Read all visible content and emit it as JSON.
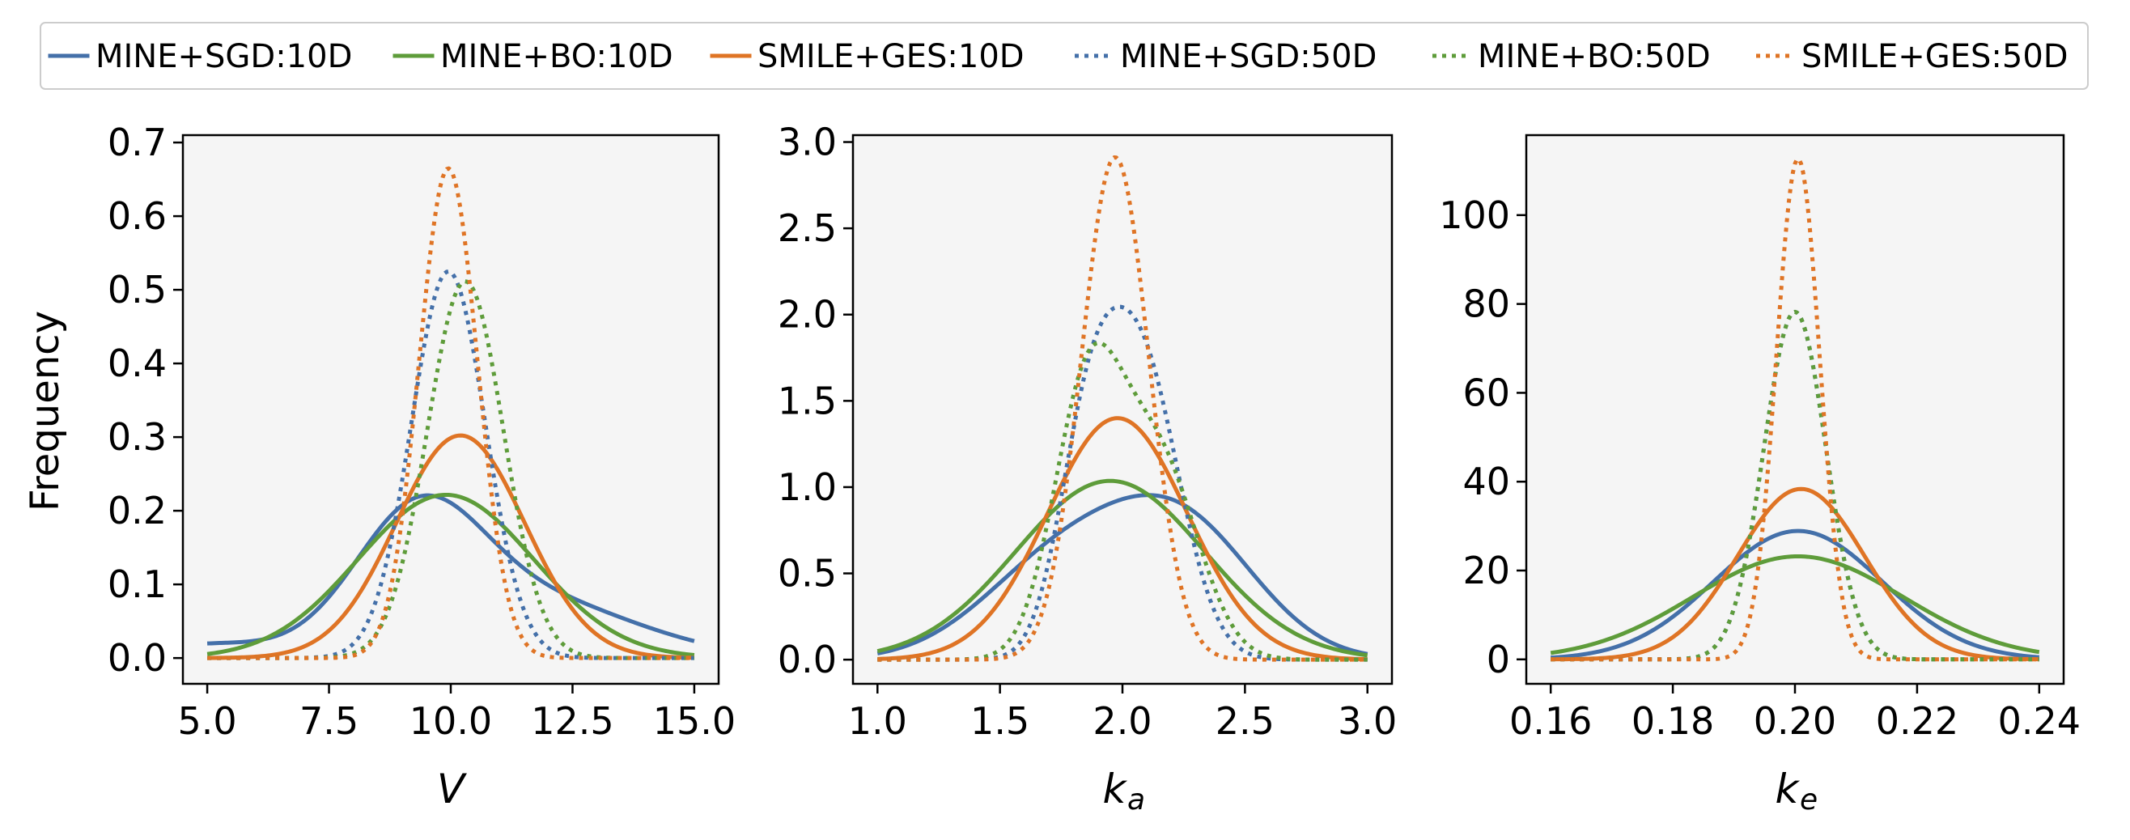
{
  "chart_data": {
    "type": "line",
    "ylabel": "Frequency",
    "colors": {
      "MINE+SGD": "#4470a9",
      "MINE+BO": "#5e9c3a",
      "SMILE+GES": "#df7425",
      "panel_background": "#f5f5f5"
    },
    "legend": {
      "placement": "top-center",
      "entries": [
        {
          "label": "MINE+SGD:10D",
          "color": "#4470a9",
          "style": "solid"
        },
        {
          "label": "MINE+BO:10D",
          "color": "#5e9c3a",
          "style": "solid"
        },
        {
          "label": "SMILE+GES:10D",
          "color": "#df7425",
          "style": "solid"
        },
        {
          "label": "MINE+SGD:50D",
          "color": "#4470a9",
          "style": "dotted"
        },
        {
          "label": "MINE+BO:50D",
          "color": "#5e9c3a",
          "style": "dotted"
        },
        {
          "label": "SMILE+GES:50D",
          "color": "#df7425",
          "style": "dotted"
        }
      ]
    },
    "panels": [
      {
        "xlabel_main": "V",
        "xlabel_sub": "",
        "xlim": [
          4.5,
          15.5
        ],
        "ylim": [
          -0.035,
          0.71
        ],
        "xticks": [
          5.0,
          7.5,
          10.0,
          12.5,
          15.0
        ],
        "xtick_labels": [
          "5.0",
          "7.5",
          "10.0",
          "12.5",
          "15.0"
        ],
        "yticks": [
          0.0,
          0.1,
          0.2,
          0.3,
          0.4,
          0.5,
          0.6,
          0.7
        ],
        "ytick_labels": [
          "0.0",
          "0.1",
          "0.2",
          "0.3",
          "0.4",
          "0.5",
          "0.6",
          "0.7"
        ],
        "x_range": [
          5.0,
          15.0
        ],
        "series": [
          {
            "name": "MINE+SGD:10D",
            "color": "#4470a9",
            "style": "solid",
            "components": [
              {
                "w": 0.55,
                "mu": 9.3,
                "sigma": 1.3
              },
              {
                "w": 0.45,
                "mu": 11.5,
                "sigma": 2.2
              },
              {
                "w": 0.0,
                "mu": 5.0,
                "sigma": 1.0
              }
            ],
            "tail": {
              "w": 0.02,
              "mu": 5.0,
              "sigma": 1.3
            }
          },
          {
            "name": "MINE+BO:10D",
            "color": "#5e9c3a",
            "style": "solid",
            "components": [
              {
                "w": 1.0,
                "mu": 9.9,
                "sigma": 1.8
              }
            ]
          },
          {
            "name": "SMILE+GES:10D",
            "color": "#df7425",
            "style": "solid",
            "components": [
              {
                "w": 1.0,
                "mu": 10.2,
                "sigma": 1.32
              }
            ]
          },
          {
            "name": "MINE+SGD:50D",
            "color": "#4470a9",
            "style": "dotted",
            "components": [
              {
                "w": 1.0,
                "mu": 9.95,
                "sigma": 0.76
              }
            ]
          },
          {
            "name": "MINE+BO:50D",
            "color": "#5e9c3a",
            "style": "dotted",
            "components": [
              {
                "w": 1.0,
                "mu": 10.3,
                "sigma": 0.78
              }
            ]
          },
          {
            "name": "SMILE+GES:50D",
            "color": "#df7425",
            "style": "dotted",
            "components": [
              {
                "w": 1.0,
                "mu": 9.95,
                "sigma": 0.6
              }
            ]
          }
        ]
      },
      {
        "xlabel_main": "k",
        "xlabel_sub": "a",
        "xlim": [
          0.9,
          3.1
        ],
        "ylim": [
          -0.14,
          3.04
        ],
        "xticks": [
          1.0,
          1.5,
          2.0,
          2.5,
          3.0
        ],
        "xtick_labels": [
          "1.0",
          "1.5",
          "2.0",
          "2.5",
          "3.0"
        ],
        "yticks": [
          0.0,
          0.5,
          1.0,
          1.5,
          2.0,
          2.5,
          3.0
        ],
        "ytick_labels": [
          "0.0",
          "0.5",
          "1.0",
          "1.5",
          "2.0",
          "2.5",
          "3.0"
        ],
        "x_range": [
          1.0,
          3.0
        ],
        "series": [
          {
            "name": "MINE+SGD:10D",
            "color": "#4470a9",
            "style": "solid",
            "components": [
              {
                "w": 0.45,
                "mu": 1.75,
                "sigma": 0.32
              },
              {
                "w": 0.55,
                "mu": 2.25,
                "sigma": 0.3
              }
            ]
          },
          {
            "name": "MINE+BO:10D",
            "color": "#5e9c3a",
            "style": "solid",
            "components": [
              {
                "w": 1.0,
                "mu": 1.95,
                "sigma": 0.385
              }
            ]
          },
          {
            "name": "SMILE+GES:10D",
            "color": "#df7425",
            "style": "solid",
            "components": [
              {
                "w": 1.0,
                "mu": 1.98,
                "sigma": 0.285
              }
            ]
          },
          {
            "name": "MINE+SGD:50D",
            "color": "#4470a9",
            "style": "dotted",
            "components": [
              {
                "w": 0.3,
                "mu": 1.85,
                "sigma": 0.12
              },
              {
                "w": 0.7,
                "mu": 2.07,
                "sigma": 0.16
              }
            ]
          },
          {
            "name": "MINE+BO:50D",
            "color": "#5e9c3a",
            "style": "dotted",
            "components": [
              {
                "w": 0.55,
                "mu": 1.86,
                "sigma": 0.14
              },
              {
                "w": 0.45,
                "mu": 2.15,
                "sigma": 0.16
              }
            ]
          },
          {
            "name": "SMILE+GES:50D",
            "color": "#df7425",
            "style": "dotted",
            "components": [
              {
                "w": 1.0,
                "mu": 1.97,
                "sigma": 0.137
              }
            ]
          }
        ]
      },
      {
        "xlabel_main": "k",
        "xlabel_sub": "e",
        "xlim": [
          0.156,
          0.244
        ],
        "ylim": [
          -5.5,
          118.0
        ],
        "xticks": [
          0.16,
          0.18,
          0.2,
          0.22,
          0.24
        ],
        "xtick_labels": [
          "0.16",
          "0.18",
          "0.20",
          "0.22",
          "0.24"
        ],
        "yticks": [
          0,
          20,
          40,
          60,
          80,
          100
        ],
        "ytick_labels": [
          "0",
          "20",
          "40",
          "60",
          "80",
          "100"
        ],
        "x_range": [
          0.16,
          0.24
        ],
        "series": [
          {
            "name": "MINE+SGD:10D",
            "color": "#4470a9",
            "style": "solid",
            "components": [
              {
                "w": 1.0,
                "mu": 0.2005,
                "sigma": 0.0138
              }
            ]
          },
          {
            "name": "MINE+BO:10D",
            "color": "#5e9c3a",
            "style": "solid",
            "components": [
              {
                "w": 1.0,
                "mu": 0.2005,
                "sigma": 0.0172
              }
            ]
          },
          {
            "name": "SMILE+GES:10D",
            "color": "#df7425",
            "style": "solid",
            "components": [
              {
                "w": 1.0,
                "mu": 0.201,
                "sigma": 0.0104
              }
            ]
          },
          {
            "name": "MINE+SGD:50D",
            "color": "#4470a9",
            "style": "dotted",
            "components": [
              {
                "w": 1.0,
                "mu": 0.2,
                "sigma": 0.0051
              }
            ]
          },
          {
            "name": "MINE+BO:50D",
            "color": "#5e9c3a",
            "style": "dotted",
            "components": [
              {
                "w": 1.0,
                "mu": 0.2,
                "sigma": 0.0051
              }
            ]
          },
          {
            "name": "SMILE+GES:50D",
            "color": "#df7425",
            "style": "dotted",
            "components": [
              {
                "w": 1.0,
                "mu": 0.2005,
                "sigma": 0.00354
              }
            ]
          }
        ]
      }
    ]
  }
}
